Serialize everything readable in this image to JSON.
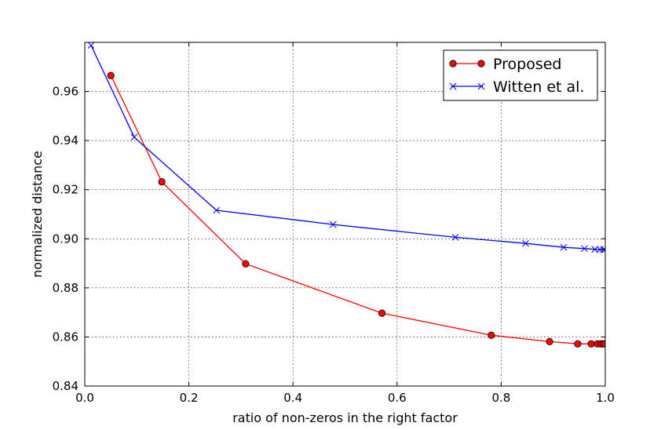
{
  "chart_data": {
    "type": "line",
    "xlabel": "ratio of non-zeros in the right factor",
    "ylabel": "normalized distance",
    "xlim": [
      0.0,
      1.0
    ],
    "ylim": [
      0.84,
      0.98
    ],
    "xticks": [
      "0.0",
      "0.2",
      "0.4",
      "0.6",
      "0.8",
      "1.0"
    ],
    "xtick_values": [
      0.0,
      0.2,
      0.4,
      0.6,
      0.8,
      1.0
    ],
    "yticks": [
      "0.84",
      "0.86",
      "0.88",
      "0.90",
      "0.92",
      "0.94",
      "0.96"
    ],
    "ytick_values": [
      0.84,
      0.86,
      0.88,
      0.9,
      0.92,
      0.94,
      0.96
    ],
    "grid": true,
    "legend_position": "top-right",
    "series": [
      {
        "name": "Proposed",
        "color": "#ff0000",
        "marker": "circle",
        "x": [
          0.05,
          0.148,
          0.309,
          0.571,
          0.781,
          0.893,
          0.947,
          0.973,
          0.985,
          0.992,
          0.996,
          0.999
        ],
        "y": [
          0.9665,
          0.9232,
          0.8898,
          0.8697,
          0.8607,
          0.8581,
          0.8572,
          0.8572,
          0.8572,
          0.8572,
          0.8572,
          0.8572
        ]
      },
      {
        "name": "Witten et al.",
        "color": "#0000ff",
        "marker": "x",
        "x": [
          0.012,
          0.095,
          0.253,
          0.477,
          0.712,
          0.847,
          0.92,
          0.96,
          0.98,
          0.99,
          0.996,
          0.999
        ],
        "y": [
          0.9788,
          0.9414,
          0.9116,
          0.9058,
          0.9006,
          0.8981,
          0.8965,
          0.896,
          0.8957,
          0.8956,
          0.8956,
          0.8955
        ]
      }
    ]
  }
}
